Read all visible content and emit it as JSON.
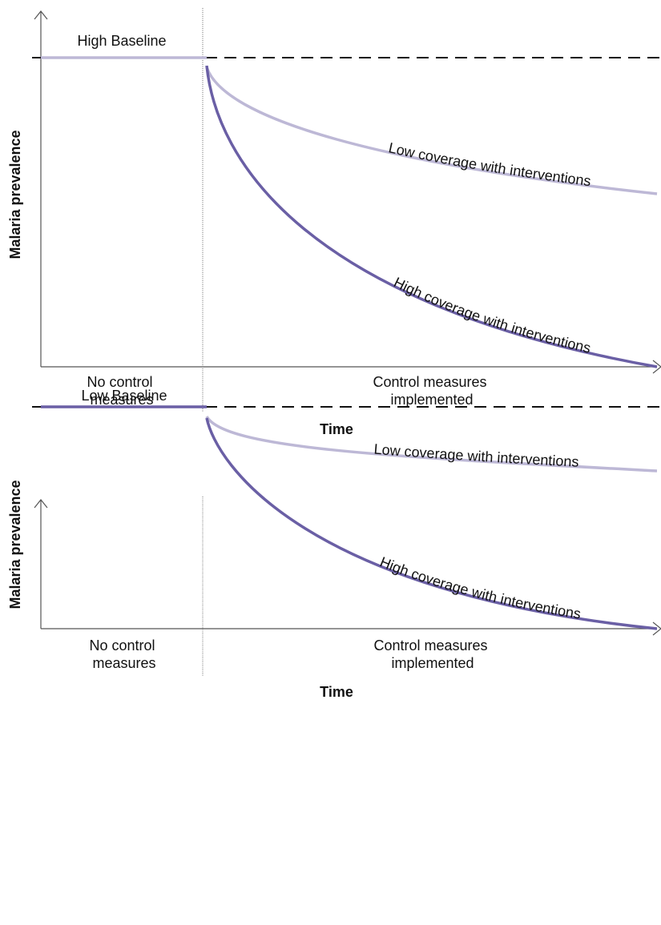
{
  "colors": {
    "high_coverage": "#6A5FA5",
    "low_coverage": "#BDB8D6",
    "axis": "#555555",
    "text": "#111111"
  },
  "chart_data": [
    {
      "type": "line",
      "baseline_label": "High Baseline",
      "ylabel": "Malaria prevalence",
      "xlabel": "Time",
      "phase_labels": {
        "before": [
          "No control",
          "measures"
        ],
        "after": [
          "Control measures",
          "implemented"
        ]
      },
      "series": [
        {
          "name": "Low coverage with interventions"
        },
        {
          "name": "High coverage with interventions"
        }
      ]
    },
    {
      "type": "line",
      "baseline_label": "Low Baseline",
      "ylabel": "Malaria prevalence",
      "xlabel": "Time",
      "phase_labels": {
        "before": [
          "No control",
          "measures"
        ],
        "after": [
          "Control measures",
          "implemented"
        ]
      },
      "series": [
        {
          "name": "Low coverage with interventions"
        },
        {
          "name": "High coverage with interventions"
        }
      ]
    }
  ]
}
